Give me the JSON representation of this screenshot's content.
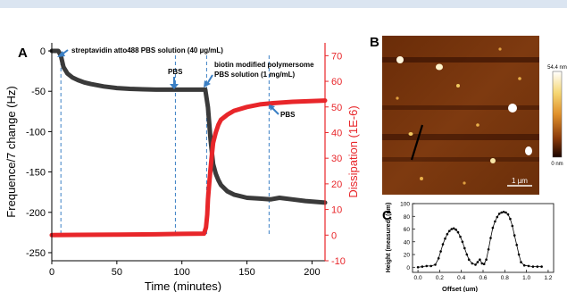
{
  "panels": {
    "a": "A",
    "b": "B",
    "c": "C"
  },
  "colors": {
    "frequency": "#3a3a3a",
    "dissipation": "#e8262a",
    "markers": "#3a7fc4",
    "header_band": "#dbe5f1"
  },
  "chart_data": [
    {
      "id": "qcm",
      "type": "line",
      "xlabel": "Time (minutes)",
      "ylabel": "Frequence/7 change (Hz)",
      "y2label": "Dissipation (1E-6)",
      "xlim": [
        0,
        210
      ],
      "ylim": [
        -260,
        10
      ],
      "y2lim": [
        -10,
        75
      ],
      "xticks": [
        0,
        50,
        100,
        150,
        200
      ],
      "yticks": [
        0,
        -50,
        -100,
        -150,
        -200,
        -250
      ],
      "y2ticks": [
        70,
        60,
        50,
        40,
        30,
        20,
        10,
        0,
        -10
      ],
      "series": [
        {
          "axis": "left",
          "x": [
            0,
            5,
            7,
            9,
            12,
            16,
            20,
            25,
            30,
            40,
            50,
            60,
            70,
            80,
            90,
            100,
            110,
            118,
            120,
            122,
            124,
            126,
            128,
            130,
            135,
            140,
            150,
            160,
            168,
            175,
            185,
            195,
            210
          ],
          "y": [
            0,
            0,
            -6,
            -20,
            -28,
            -33,
            -36,
            -39,
            -41,
            -44,
            -46,
            -47,
            -47.5,
            -48,
            -48,
            -48,
            -48,
            -48,
            -70,
            -110,
            -140,
            -152,
            -160,
            -166,
            -174,
            -178,
            -182,
            -183,
            -184,
            -182,
            -184,
            -186,
            -188
          ]
        },
        {
          "axis": "right",
          "x": [
            0,
            20,
            50,
            80,
            100,
            117,
            118.5,
            119.5,
            120,
            121,
            122,
            123,
            124,
            126,
            128,
            130,
            135,
            140,
            150,
            160,
            170,
            185,
            210
          ],
          "y": [
            0,
            0.1,
            0.2,
            0.3,
            0.5,
            0.6,
            3,
            8,
            14,
            20,
            26,
            31,
            36,
            40,
            43,
            45,
            47,
            48.5,
            50,
            51,
            51.5,
            52,
            52.5
          ]
        }
      ],
      "markers": [
        7,
        95,
        119,
        167
      ],
      "annotations": [
        "streptavidin atto488 PBS solution (40 µg/mL)",
        "PBS",
        "biotin modified polymersome",
        "PBS solution (1 mg/mL)",
        "PBS"
      ]
    },
    {
      "id": "afm",
      "type": "heatmap",
      "colorbar": [
        "54.4 nm",
        "0 nm"
      ],
      "scalebar": "1 µm"
    },
    {
      "id": "profile",
      "type": "line",
      "xlabel": "Offset (um)",
      "ylabel": "Height (measured) (nm)",
      "xlim": [
        -0.05,
        1.25
      ],
      "ylim": [
        -8,
        100
      ],
      "xticks": [
        "0.0",
        "0.2",
        "0.4",
        "0.6",
        "0.8",
        "1.0",
        "1.2"
      ],
      "yticks": [
        "0",
        "20",
        "40",
        "60",
        "80",
        "100"
      ],
      "series": [
        {
          "x": [
            0,
            0.04,
            0.08,
            0.12,
            0.16,
            0.19,
            0.21,
            0.23,
            0.25,
            0.27,
            0.29,
            0.31,
            0.33,
            0.35,
            0.37,
            0.39,
            0.41,
            0.43,
            0.45,
            0.47,
            0.5,
            0.53,
            0.55,
            0.57,
            0.59,
            0.61,
            0.63,
            0.65,
            0.67,
            0.69,
            0.71,
            0.73,
            0.75,
            0.77,
            0.79,
            0.81,
            0.83,
            0.85,
            0.87,
            0.89,
            0.91,
            0.93,
            0.95,
            0.98,
            1.02,
            1.06,
            1.1,
            1.14
          ],
          "y": [
            0,
            1,
            2,
            2,
            4,
            14,
            25,
            36,
            45,
            52,
            57,
            60,
            61,
            59,
            55,
            48,
            40,
            30,
            20,
            12,
            6,
            4,
            8,
            12,
            6,
            5,
            12,
            28,
            46,
            62,
            72,
            79,
            84,
            86,
            87,
            86,
            83,
            76,
            65,
            50,
            35,
            20,
            8,
            3,
            2,
            1,
            1,
            1
          ]
        }
      ]
    }
  ]
}
